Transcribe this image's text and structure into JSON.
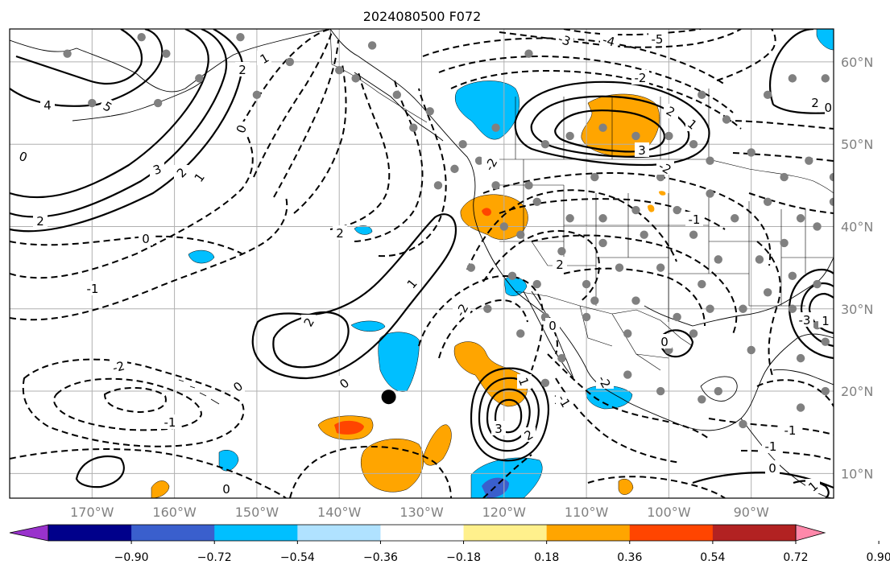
{
  "title": "2024080500 F072",
  "map": {
    "lon_range": [
      -180,
      -80
    ],
    "lat_range": [
      7,
      64
    ],
    "lon_ticks": [
      {
        "value": -170,
        "label": "170°W"
      },
      {
        "value": -160,
        "label": "160°W"
      },
      {
        "value": -150,
        "label": "150°W"
      },
      {
        "value": -140,
        "label": "140°W"
      },
      {
        "value": -130,
        "label": "130°W"
      },
      {
        "value": -120,
        "label": "120°W"
      },
      {
        "value": -110,
        "label": "110°W"
      },
      {
        "value": -100,
        "label": "100°W"
      },
      {
        "value": -90,
        "label": "90°W"
      }
    ],
    "lat_ticks": [
      {
        "value": 60,
        "label": "60°N"
      },
      {
        "value": 50,
        "label": "50°N"
      },
      {
        "value": 40,
        "label": "40°N"
      },
      {
        "value": 30,
        "label": "30°N"
      },
      {
        "value": 20,
        "label": "20°N"
      },
      {
        "value": 10,
        "label": "10°N"
      }
    ],
    "grid": true,
    "marker": {
      "lon": -134,
      "lat": 19.3,
      "color": "#000000"
    }
  },
  "colorbar": {
    "colors": [
      "#9932cc",
      "#00008b",
      "#3a5fcd",
      "#00bfff",
      "#b0e2ff",
      "#ffffff",
      "#fff08c",
      "#ffa500",
      "#ff4500",
      "#b22222",
      "#ff88aa"
    ],
    "ticks": [
      "−0.90",
      "−0.72",
      "−0.54",
      "−0.36",
      "−0.18",
      "0.18",
      "0.36",
      "0.54",
      "0.72",
      "0.90"
    ],
    "extend": "both"
  },
  "contour_labels": [
    "4",
    "5",
    "3",
    "2",
    "1",
    "0",
    "2",
    "1",
    "0",
    "-1",
    "2",
    "2",
    "1",
    "0",
    "2",
    "-1",
    "-2",
    "3",
    "2",
    "1",
    "0",
    "-3",
    "-4",
    "-5",
    "2",
    "3",
    "2",
    "-2",
    "-1",
    "-2",
    "-3",
    "2",
    "1",
    "1",
    "0",
    "0",
    "0",
    "-1",
    "-1",
    "0",
    "1",
    "1",
    "-1",
    "-2",
    "-2",
    "-2",
    "0",
    "0"
  ]
}
